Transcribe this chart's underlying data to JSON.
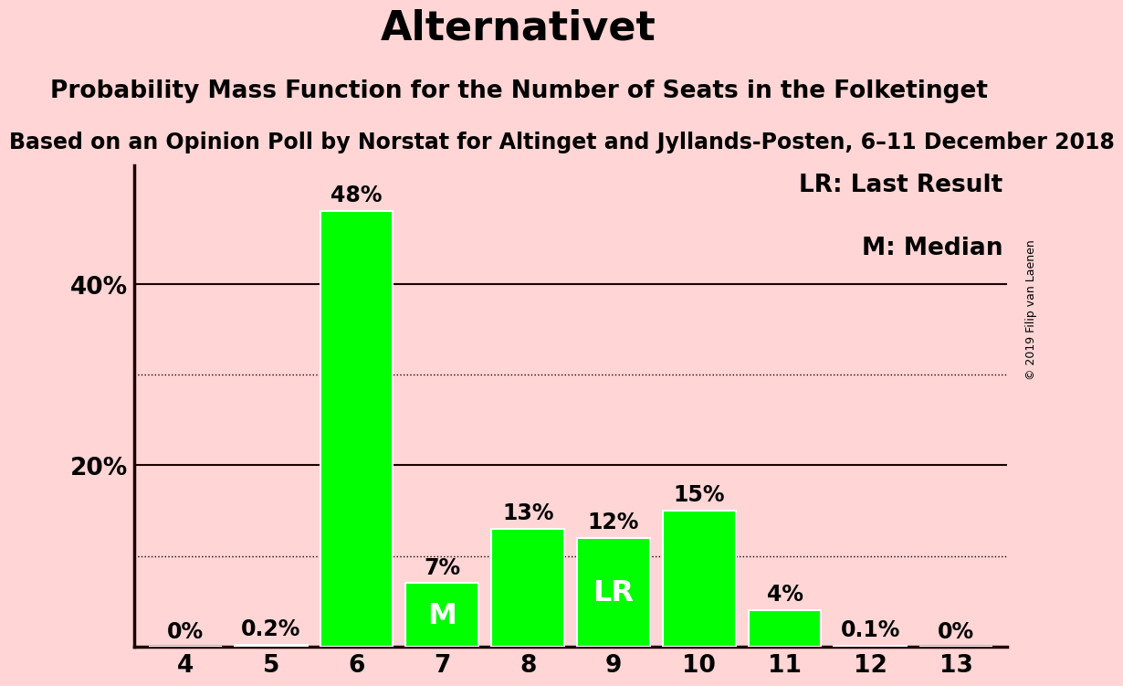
{
  "title": "Alternativet",
  "subtitle": "Probability Mass Function for the Number of Seats in the Folketinget",
  "source_line": "Based on an Opinion Poll by Norstat for Altinget and Jyllands-Posten, 6–11 December 2018",
  "copyright": "© 2019 Filip van Laenen",
  "seats": [
    4,
    5,
    6,
    7,
    8,
    9,
    10,
    11,
    12,
    13
  ],
  "probabilities": [
    0.0,
    0.2,
    48.0,
    7.0,
    13.0,
    12.0,
    15.0,
    4.0,
    0.1,
    0.0
  ],
  "labels": [
    "0%",
    "0.2%",
    "48%",
    "7%",
    "13%",
    "12%",
    "15%",
    "4%",
    "0.1%",
    "0%"
  ],
  "median_seat": 7,
  "lr_seat": 9,
  "bar_color": "#00FF00",
  "background_color": "#FFD5D5",
  "bar_edge_color": "#FFFFFF",
  "yticks": [
    0,
    10,
    20,
    30,
    40,
    50
  ],
  "ytick_labels": [
    "",
    "",
    "20%",
    "",
    "40%",
    ""
  ],
  "dotted_gridlines": [
    10,
    30
  ],
  "solid_gridlines": [
    20,
    40
  ],
  "ymax": 53,
  "legend_lr": "LR: Last Result",
  "legend_m": "M: Median",
  "title_fontsize": 32,
  "subtitle_fontsize": 19,
  "source_fontsize": 17,
  "label_fontsize": 17,
  "tick_fontsize": 19,
  "legend_fontsize": 19,
  "axis_color": "#1A0000",
  "text_color": "#000000",
  "inside_label_color": "#FFFFFF",
  "inside_label_fontsize": 23,
  "bar_width": 0.85
}
